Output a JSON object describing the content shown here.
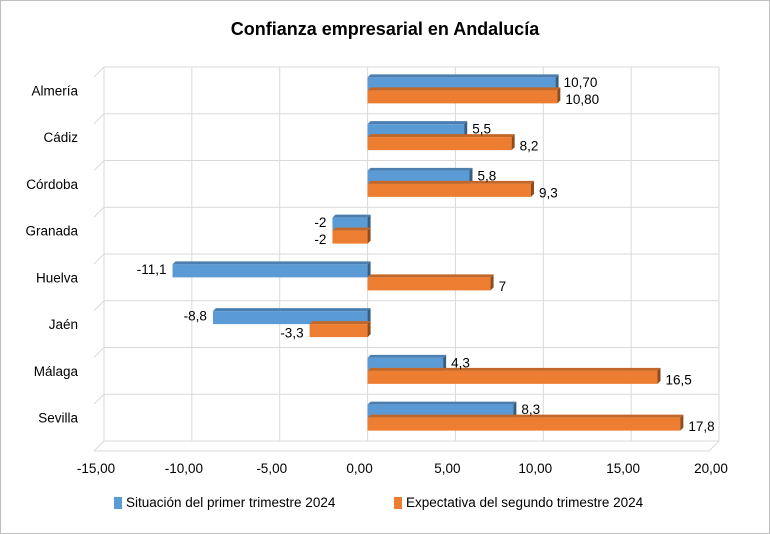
{
  "chart_data": {
    "type": "bar",
    "orientation": "horizontal",
    "style": "3d",
    "title": "Confianza empresarial en Andalucía",
    "xlabel": "",
    "ylabel": "",
    "categories": [
      "Almería",
      "Cádiz",
      "Córdoba",
      "Granada",
      "Huelva",
      "Jaén",
      "Málaga",
      "Sevilla"
    ],
    "series": [
      {
        "name": "Situación del primer trimestre 2024",
        "color": "#5B9BD5",
        "values": [
          10.7,
          5.5,
          5.8,
          -2,
          -11.1,
          -8.8,
          4.3,
          8.3
        ],
        "labels": [
          "10,70",
          "5,5",
          "5,8",
          "-2",
          "-11,1",
          "-8,8",
          "4,3",
          "8,3"
        ]
      },
      {
        "name": "Expectativa del segundo trimestre 2024",
        "color": "#ED7D31",
        "values": [
          10.8,
          8.2,
          9.3,
          -2,
          7,
          -3.3,
          16.5,
          17.8
        ],
        "labels": [
          "10,80",
          "8,2",
          "9,3",
          "-2",
          "7",
          "-3,3",
          "16,5",
          "17,8"
        ]
      }
    ],
    "xlim": [
      -15,
      20
    ],
    "xticks": [
      -15,
      -10,
      -5,
      0,
      5,
      10,
      15,
      20
    ],
    "xtick_labels": [
      "-15,00",
      "-10,00",
      "-5,00",
      "0,00",
      "5,00",
      "10,00",
      "15,00",
      "20,00"
    ],
    "grid": true,
    "legend_position": "bottom"
  }
}
